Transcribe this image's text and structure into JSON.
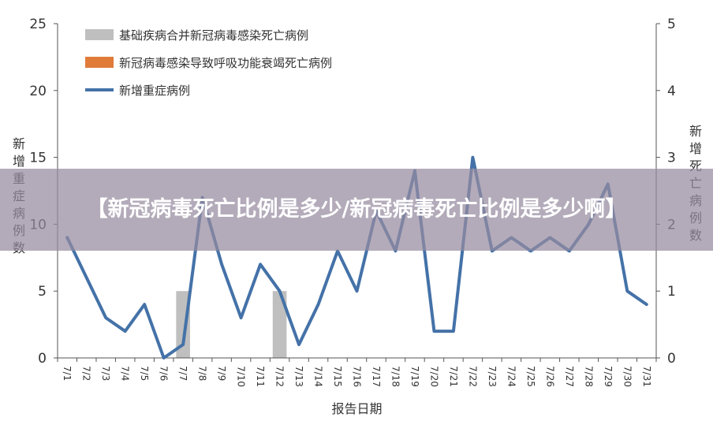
{
  "chart_data": {
    "type": "bar+line",
    "categories": [
      "7/1",
      "7/2",
      "7/3",
      "7/4",
      "7/5",
      "7/6",
      "7/7",
      "7/8",
      "7/9",
      "7/10",
      "7/11",
      "7/12",
      "7/13",
      "7/14",
      "7/15",
      "7/16",
      "7/17",
      "7/18",
      "7/19",
      "7/20",
      "7/21",
      "7/22",
      "7/23",
      "7/24",
      "7/25",
      "7/26",
      "7/27",
      "7/28",
      "7/29",
      "7/30",
      "7/31"
    ],
    "series": [
      {
        "name": "基础疾病合并新冠病毒感染死亡病例",
        "kind": "bar",
        "axis": "left",
        "color": "#bfbfbf",
        "values": [
          0,
          0,
          0,
          0,
          0,
          0,
          5,
          0,
          0,
          0,
          0,
          5,
          0,
          0,
          0,
          0,
          0,
          0,
          0,
          0,
          0,
          0,
          0,
          0,
          0,
          0,
          0,
          0,
          0,
          0,
          0
        ]
      },
      {
        "name": "新冠病毒感染导致呼吸功能衰竭死亡病例",
        "kind": "bar",
        "axis": "left",
        "color": "#e07b39",
        "values": [
          0,
          0,
          0,
          0,
          0,
          0,
          0,
          0,
          0,
          0,
          0,
          0,
          0,
          0,
          0,
          0,
          0,
          0,
          0,
          0,
          0,
          0,
          0,
          0,
          0,
          0,
          0,
          0,
          0,
          0,
          0
        ]
      },
      {
        "name": "新增重症病例",
        "kind": "line",
        "axis": "right",
        "color": "#4472a8",
        "values": [
          1.8,
          1.2,
          0.6,
          0.4,
          0.8,
          0,
          0.2,
          2.4,
          1.4,
          0.6,
          1.4,
          1,
          0.2,
          0.8,
          1.6,
          1,
          2.2,
          1.6,
          2.8,
          0.4,
          0.4,
          3,
          1.6,
          1.8,
          1.6,
          1.8,
          1.6,
          2,
          2.6,
          1,
          0.8
        ]
      }
    ],
    "yleft": {
      "label": "新增重症病例数",
      "lim": [
        0,
        25
      ],
      "ticks": [
        "0",
        "5",
        "10",
        "15",
        "20",
        "25"
      ]
    },
    "yright": {
      "label": "新增死亡病例数",
      "lim": [
        0,
        5
      ],
      "ticks": [
        "0",
        "1",
        "2",
        "3",
        "4",
        "5"
      ]
    },
    "xlabel": "报告日期",
    "legend": "top-left",
    "grid": false
  },
  "banner": {
    "title": "【新冠病毒死亡比例是多少/新冠病毒死亡比例是多少啊】"
  }
}
